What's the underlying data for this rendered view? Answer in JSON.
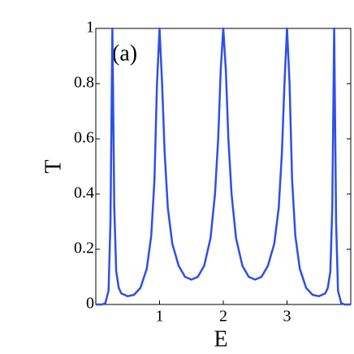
{
  "chart_data": {
    "type": "line",
    "xlabel": "E",
    "ylabel": "T",
    "annotation": "(a)",
    "x": [
      0,
      0.1,
      0.15,
      0.2,
      0.23,
      0.26,
      0.29,
      0.32,
      0.36,
      0.4,
      0.5,
      0.6,
      0.7,
      0.8,
      0.87,
      0.92,
      0.96,
      1.0,
      1.04,
      1.08,
      1.13,
      1.2,
      1.3,
      1.4,
      1.5,
      1.6,
      1.7,
      1.8,
      1.87,
      1.92,
      1.96,
      2.0,
      2.04,
      2.08,
      2.13,
      2.2,
      2.3,
      2.4,
      2.5,
      2.6,
      2.7,
      2.8,
      2.87,
      2.92,
      2.96,
      3.0,
      3.04,
      3.08,
      3.13,
      3.2,
      3.3,
      3.4,
      3.5,
      3.6,
      3.64,
      3.68,
      3.71,
      3.74,
      3.77,
      3.8,
      3.85,
      3.9,
      4.0
    ],
    "series": [
      {
        "color": "#2f4fe8",
        "values": [
          0,
          0,
          0.005,
          0.05,
          0.3,
          1,
          0.35,
          0.12,
          0.06,
          0.04,
          0.03,
          0.035,
          0.06,
          0.13,
          0.25,
          0.45,
          0.8,
          1,
          0.8,
          0.55,
          0.35,
          0.22,
          0.14,
          0.1,
          0.09,
          0.1,
          0.14,
          0.24,
          0.4,
          0.6,
          0.85,
          1,
          0.85,
          0.6,
          0.4,
          0.24,
          0.14,
          0.1,
          0.09,
          0.1,
          0.14,
          0.22,
          0.35,
          0.55,
          0.8,
          1,
          0.8,
          0.45,
          0.25,
          0.13,
          0.06,
          0.035,
          0.03,
          0.04,
          0.06,
          0.12,
          0.35,
          1,
          0.3,
          0.05,
          0.005,
          0,
          0
        ]
      }
    ],
    "xlim": [
      0,
      4
    ],
    "xticks": [
      1,
      2,
      3
    ],
    "ylim": [
      0,
      1
    ],
    "yticks": [
      0,
      0.2,
      0.4,
      0.6,
      0.8,
      1
    ]
  }
}
